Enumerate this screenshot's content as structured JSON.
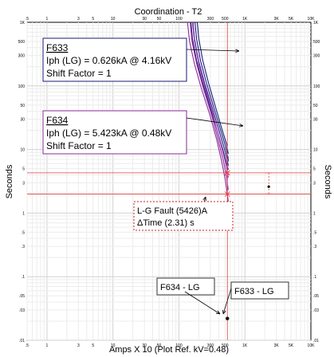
{
  "window": {
    "title": "Coordination - T2"
  },
  "chart_data": {
    "type": "line",
    "title": "Coordination - T2",
    "xlabel": "Amps  X  10 (Plot Ref. kV=0.48)",
    "ylabel": "Seconds",
    "ylabel_right": "Seconds",
    "x_scale": "log",
    "y_scale": "log",
    "xlim": [
      0.5,
      10000
    ],
    "ylim": [
      0.01,
      1000
    ],
    "x_ticks": [
      {
        "v": 0.5,
        "label": ".5"
      },
      {
        "v": 1,
        "label": "1"
      },
      {
        "v": 3,
        "label": "3"
      },
      {
        "v": 5,
        "label": "5"
      },
      {
        "v": 10,
        "label": "10"
      },
      {
        "v": 30,
        "label": "30"
      },
      {
        "v": 50,
        "label": "50"
      },
      {
        "v": 100,
        "label": "100"
      },
      {
        "v": 300,
        "label": "300"
      },
      {
        "v": 500,
        "label": "500"
      },
      {
        "v": 1000,
        "label": "1K"
      },
      {
        "v": 3000,
        "label": "3K"
      },
      {
        "v": 5000,
        "label": "5K"
      },
      {
        "v": 10000,
        "label": "10K"
      }
    ],
    "y_ticks": [
      {
        "v": 1000,
        "label": "1K"
      },
      {
        "v": 500,
        "label": "500"
      },
      {
        "v": 300,
        "label": "300"
      },
      {
        "v": 100,
        "label": "100"
      },
      {
        "v": 50,
        "label": "50"
      },
      {
        "v": 30,
        "label": "30"
      },
      {
        "v": 10,
        "label": "10"
      },
      {
        "v": 5,
        "label": "5"
      },
      {
        "v": 3,
        "label": "3"
      },
      {
        "v": 1,
        "label": "1"
      },
      {
        "v": 0.5,
        "label": ".5"
      },
      {
        "v": 0.3,
        "label": ".3"
      },
      {
        "v": 0.1,
        "label": ".1"
      },
      {
        "v": 0.05,
        "label": ".05"
      },
      {
        "v": 0.03,
        "label": ".03"
      },
      {
        "v": 0.01,
        "label": ".01"
      }
    ],
    "series": [
      {
        "color": "#1a1a7a",
        "x": [
          152,
          160,
          185,
          230,
          300,
          380,
          450,
          520,
          560
        ],
        "y": [
          1000,
          550,
          250,
          110,
          45,
          20,
          11,
          6.5,
          4.8
        ]
      },
      {
        "color": "#1a1a7a",
        "x": [
          163,
          172,
          198,
          245,
          320,
          405,
          480,
          540,
          560
        ],
        "y": [
          1000,
          550,
          250,
          110,
          45,
          20,
          11,
          7,
          5.5
        ]
      },
      {
        "color": "#1a1a7a",
        "x": [
          175,
          185,
          212,
          262,
          340,
          430,
          505,
          555,
          560
        ],
        "y": [
          1000,
          550,
          250,
          110,
          45,
          20,
          11.5,
          7.5,
          6.5
        ]
      },
      {
        "color": "#1a1a7a",
        "x": [
          190,
          200,
          230,
          282,
          362,
          455,
          530,
          560
        ],
        "y": [
          1000,
          550,
          250,
          110,
          45,
          20,
          12,
          8.5
        ]
      },
      {
        "color": "#8a2a9a",
        "x": [
          135,
          145,
          172,
          220,
          295,
          375,
          445,
          505,
          545,
          560
        ],
        "y": [
          1000,
          500,
          220,
          90,
          35,
          14,
          6.5,
          3.3,
          1.9,
          1.5
        ]
      },
      {
        "color": "#8a2a9a",
        "x": [
          148,
          158,
          186,
          236,
          312,
          395,
          470,
          530,
          560
        ],
        "y": [
          1000,
          500,
          220,
          90,
          35,
          14,
          6.8,
          3.6,
          2.3
        ]
      },
      {
        "color": "#b030c0",
        "x": [
          160,
          172,
          200,
          252,
          330,
          415,
          492,
          550,
          560
        ],
        "y": [
          1000,
          500,
          220,
          90,
          35,
          14,
          7.2,
          4.1,
          3.6
        ]
      }
    ],
    "fault_current_x": 542.6,
    "markers": [
      {
        "x": 542.6,
        "y": 4.3
      },
      {
        "x": 542.6,
        "y": 1.99
      }
    ],
    "delta_time": {
      "x": 2300,
      "y_top": 4.3,
      "y_bottom": 1.99,
      "y_mid": 2.6
    },
    "fault_point": {
      "x": 542.6,
      "y": 0.022
    },
    "annotations": [
      {
        "key": "f633",
        "heading": "F633",
        "lines": [
          "Iph (LG) = 0.626kA @ 4.16kV",
          "Shift Factor = 1"
        ],
        "border": "#1a1a7a"
      },
      {
        "key": "f634",
        "heading": "F634",
        "lines": [
          "Iph (LG) = 5.423kA @ 0.48kV",
          "Shift Factor = 1"
        ],
        "border": "#8a2a9a"
      },
      {
        "key": "fault",
        "lines": [
          "L-G Fault (5426)A",
          "ΔTime (2.31) s"
        ],
        "border": "#cc2222"
      },
      {
        "key": "f634lg",
        "lines": [
          "F634 - LG"
        ],
        "border": "#333333"
      },
      {
        "key": "f633lg",
        "lines": [
          "F633 - LG"
        ],
        "border": "#333333"
      }
    ]
  }
}
